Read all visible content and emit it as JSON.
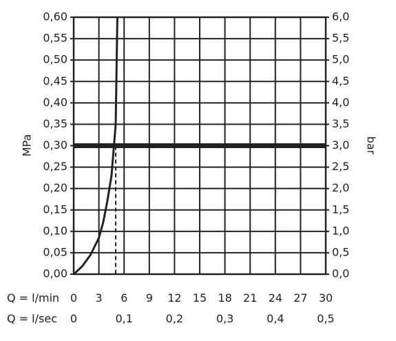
{
  "chart_data": {
    "type": "line",
    "y_left": {
      "label": "MPa",
      "ticks": [
        "0,00",
        "0,05",
        "0,10",
        "0,15",
        "0,20",
        "0,25",
        "0,30",
        "0,35",
        "0,40",
        "0,45",
        "0,50",
        "0,55",
        "0,60"
      ],
      "lim": [
        0,
        0.6
      ]
    },
    "y_right": {
      "label": "bar",
      "ticks": [
        "0,0",
        "0,5",
        "1,0",
        "1,5",
        "2,0",
        "2,5",
        "3,0",
        "3,5",
        "4,0",
        "4,5",
        "5,0",
        "5,5",
        "6,0"
      ],
      "lim": [
        0,
        6
      ]
    },
    "x_primary": {
      "label": "Q = l/min",
      "ticks": [
        "0",
        "3",
        "6",
        "9",
        "12",
        "15",
        "18",
        "21",
        "24",
        "27",
        "30"
      ],
      "lim": [
        0,
        30
      ]
    },
    "x_secondary": {
      "label": "Q = l/sec",
      "ticks": [
        "0",
        "0,1",
        "0,2",
        "0,3",
        "0,4",
        "0,5"
      ],
      "values": [
        0,
        0.1,
        0.2,
        0.3,
        0.4,
        0.5
      ]
    },
    "series": [
      {
        "x": [
          0,
          1,
          2,
          3,
          3.5,
          4,
          4.5,
          5,
          5.2
        ],
        "y": [
          0,
          0.018,
          0.045,
          0.085,
          0.12,
          0.17,
          0.23,
          0.35,
          0.6
        ],
        "color": "#222222"
      }
    ],
    "reference_line": {
      "y": 0.3,
      "color": "#222222"
    },
    "marker_line": {
      "x": 5,
      "y": 0.3,
      "style": "dashed"
    },
    "grid": true
  }
}
